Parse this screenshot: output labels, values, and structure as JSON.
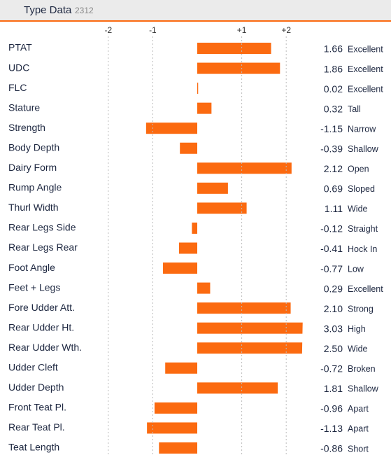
{
  "chart_data": {
    "type": "bar",
    "orientation": "horizontal",
    "title": "Type Data",
    "subtitle": "2312",
    "categories": [
      "PTAT",
      "UDC",
      "FLC",
      "Stature",
      "Strength",
      "Body Depth",
      "Dairy Form",
      "Rump Angle",
      "Thurl Width",
      "Rear Legs Side",
      "Rear Legs Rear",
      "Foot Angle",
      "Feet + Legs",
      "Fore Udder Att.",
      "Rear Udder Ht.",
      "Rear Udder Wth.",
      "Udder Cleft",
      "Udder Depth",
      "Front Teat Pl.",
      "Rear Teat Pl.",
      "Teat Length"
    ],
    "values": [
      1.66,
      1.86,
      0.02,
      0.32,
      -1.15,
      -0.39,
      2.12,
      0.69,
      1.11,
      -0.12,
      -0.41,
      -0.77,
      0.29,
      2.1,
      3.03,
      2.5,
      -0.72,
      1.81,
      -0.96,
      -1.13,
      -0.86
    ],
    "value_labels": [
      "1.66",
      "1.86",
      "0.02",
      "0.32",
      "-1.15",
      "-0.39",
      "2.12",
      "0.69",
      "1.11",
      "-0.12",
      "-0.41",
      "-0.77",
      "0.29",
      "2.10",
      "3.03",
      "2.50",
      "-0.72",
      "1.81",
      "-0.96",
      "-1.13",
      "-0.86"
    ],
    "descriptors": [
      "Excellent",
      "Excellent",
      "Excellent",
      "Tall",
      "Narrow",
      "Shallow",
      "Open",
      "Sloped",
      "Wide",
      "Straight",
      "Hock In",
      "Low",
      "Excellent",
      "Strong",
      "High",
      "Wide",
      "Broken",
      "Shallow",
      "Apart",
      "Apart",
      "Short"
    ],
    "color": "#fb6a10",
    "xlim": [
      -2.5,
      2.5
    ],
    "xticks": [
      -2,
      -1,
      {
        "value": 1,
        "label": "+1"
      },
      {
        "value": 2,
        "label": "+2"
      }
    ],
    "grid": true
  }
}
